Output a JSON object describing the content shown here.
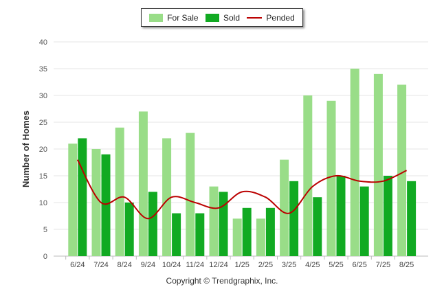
{
  "chart_data": {
    "type": "bar",
    "categories": [
      "6/24",
      "7/24",
      "8/24",
      "9/24",
      "10/24",
      "11/24",
      "12/24",
      "1/25",
      "2/25",
      "3/25",
      "4/25",
      "5/25",
      "6/25",
      "7/25",
      "8/25"
    ],
    "series": [
      {
        "name": "For Sale",
        "type": "bar",
        "color": "#99dd88",
        "values": [
          21,
          20,
          24,
          27,
          22,
          23,
          13,
          7,
          7,
          18,
          30,
          29,
          35,
          34,
          32
        ]
      },
      {
        "name": "Sold",
        "type": "bar",
        "color": "#11aa22",
        "values": [
          22,
          19,
          10,
          12,
          8,
          8,
          12,
          9,
          9,
          14,
          11,
          15,
          13,
          15,
          14
        ]
      },
      {
        "name": "Pended",
        "type": "line",
        "color": "#bb0000",
        "values": [
          18,
          10,
          11,
          7,
          11,
          10,
          9,
          12,
          11,
          8,
          13,
          15,
          14,
          14,
          16
        ]
      }
    ],
    "ylabel": "Number of Homes",
    "xlabel": "",
    "ylim": [
      0,
      40
    ],
    "yticks": [
      0,
      5,
      10,
      15,
      20,
      25,
      30,
      35,
      40
    ],
    "legend_position": "top-center",
    "grid": true
  },
  "footer": {
    "copyright": "Copyright © Trendgraphix, Inc."
  }
}
